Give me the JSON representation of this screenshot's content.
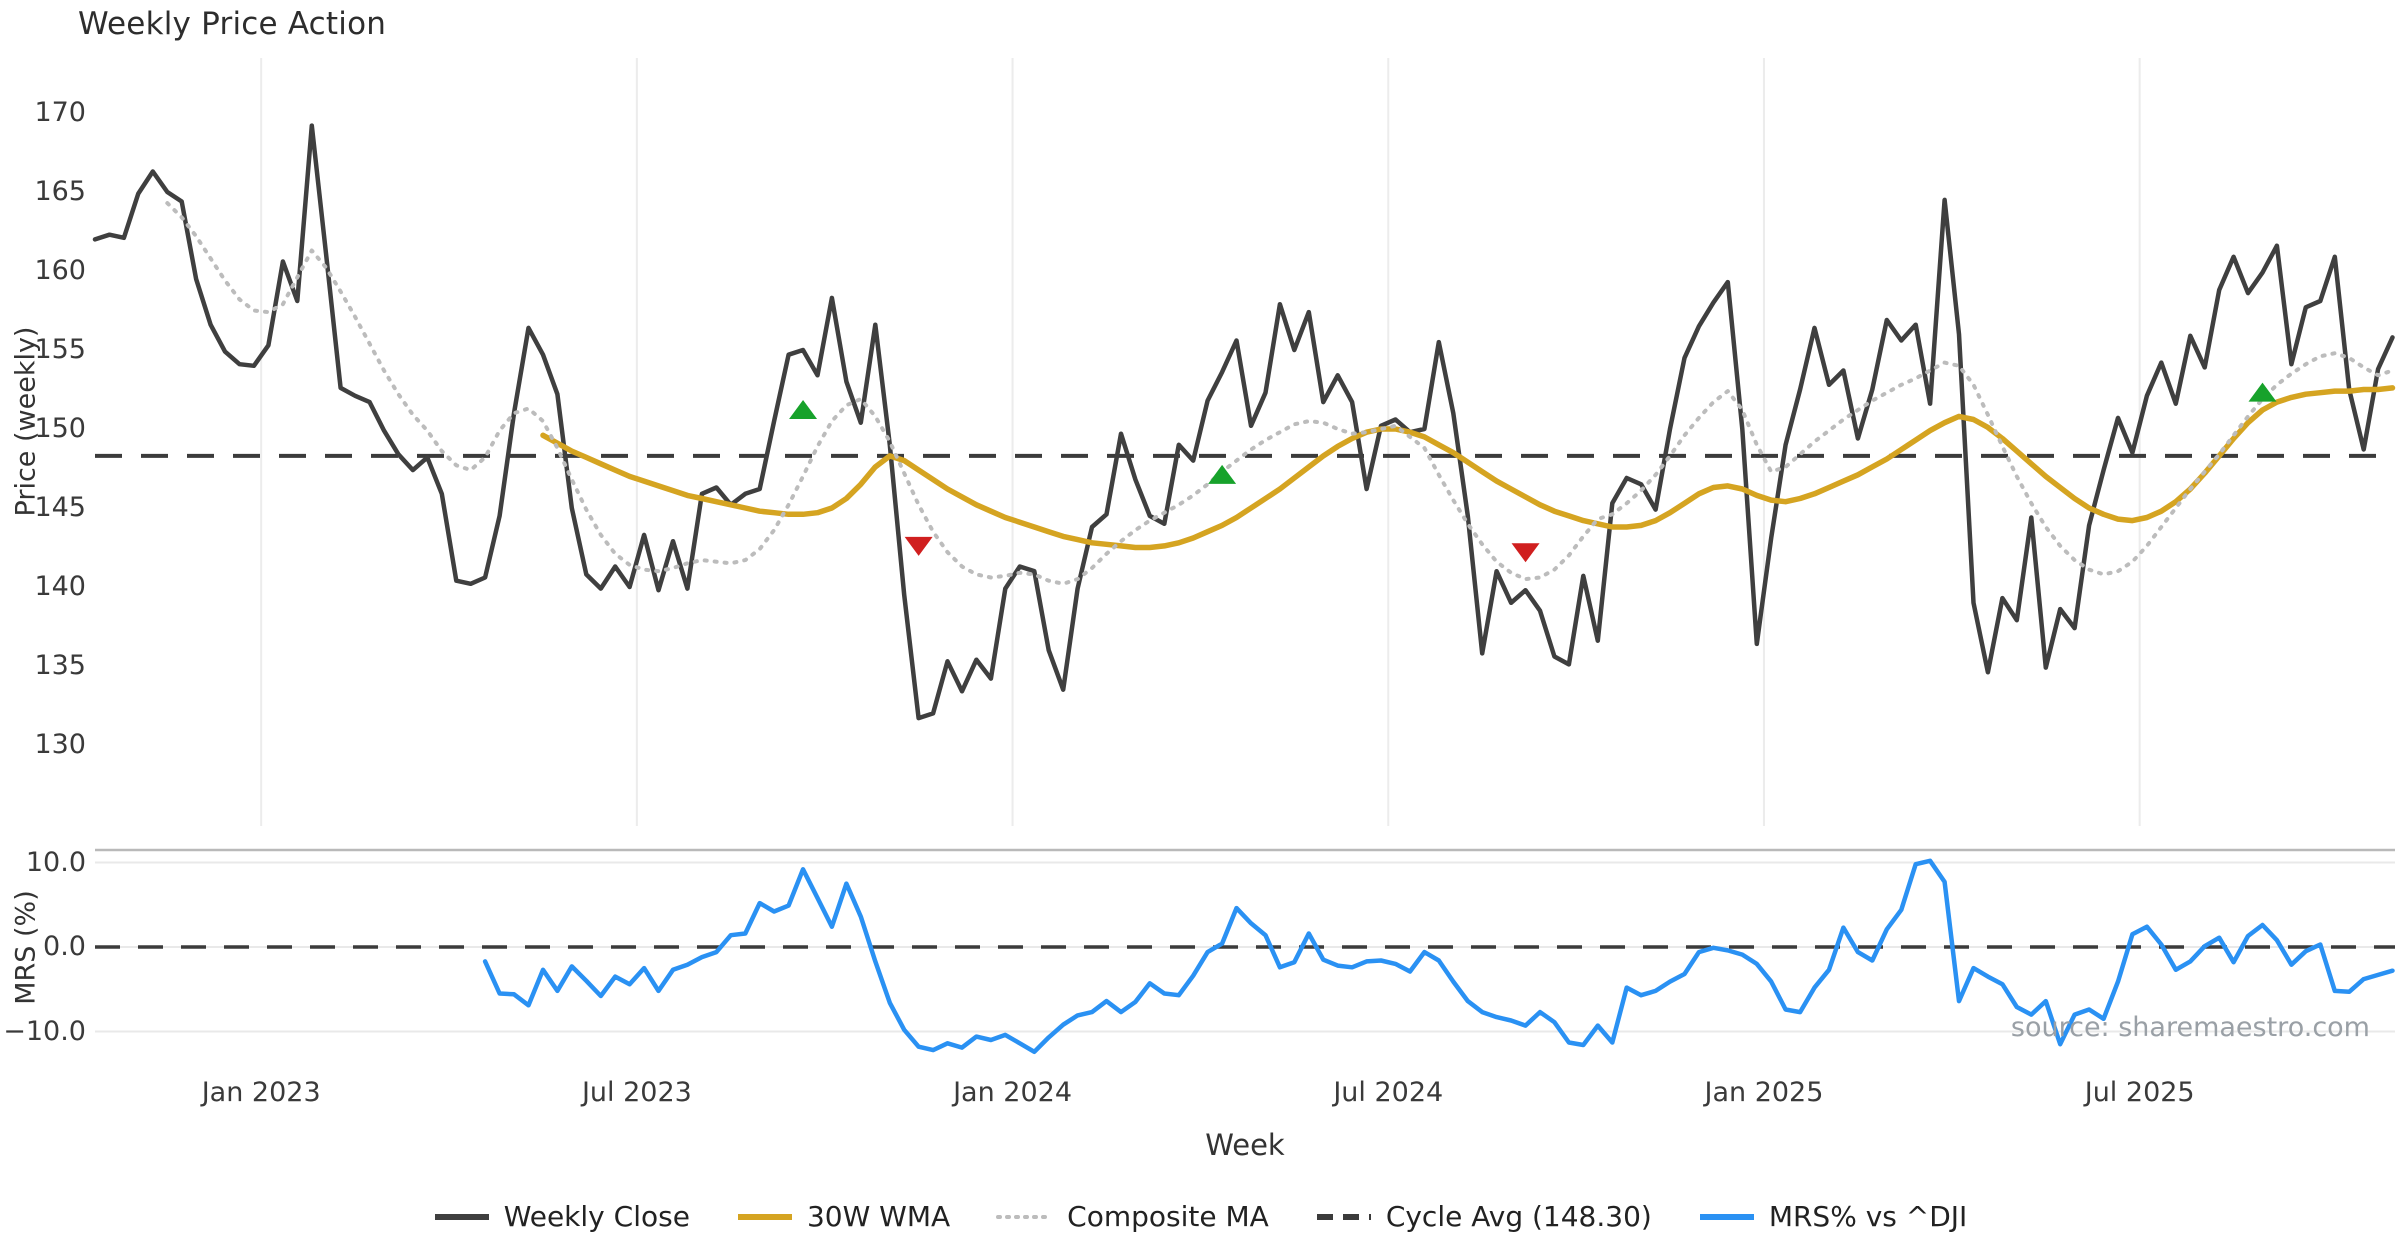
{
  "title": "Weekly Price Action",
  "axes": {
    "price": {
      "label": "Price (weekly)",
      "ticks": [
        170,
        165,
        160,
        155,
        150,
        145,
        140,
        135,
        130
      ]
    },
    "mrs": {
      "label": "MRS (%)",
      "ticks": [
        {
          "value": 10,
          "label": "10.0"
        },
        {
          "value": 0,
          "label": "0.0"
        },
        {
          "value": -10,
          "label": "−10.0"
        }
      ]
    },
    "x": {
      "label": "Week",
      "ticks": [
        {
          "week": 11.5,
          "label": "Jan 2023"
        },
        {
          "week": 37.5,
          "label": "Jul 2023"
        },
        {
          "week": 63.5,
          "label": "Jan 2024"
        },
        {
          "week": 89.5,
          "label": "Jul 2024"
        },
        {
          "week": 115.5,
          "label": "Jan 2025"
        },
        {
          "week": 141.5,
          "label": "Jul 2025"
        }
      ]
    }
  },
  "source_note": "source: sharemaestro.com",
  "legend": [
    {
      "label": "Weekly Close",
      "style": "solid",
      "color": "#3f3f3f"
    },
    {
      "label": "30W WMA",
      "style": "solid",
      "color": "#d5a421"
    },
    {
      "label": "Composite MA",
      "style": "dotted",
      "color": "#bcbcbc"
    },
    {
      "label": "Cycle Avg (148.30)",
      "style": "dashed",
      "color": "#3b3b3b"
    },
    {
      "label": "MRS% vs ^DJI",
      "style": "solid",
      "color": "#2a91f3"
    }
  ],
  "chart_data": {
    "type": "line",
    "x_unit": "week_index",
    "x_range_weeks": [
      0,
      159
    ],
    "panels": {
      "price": {
        "ylim": [
          130,
          170
        ],
        "grid": "vertical-only"
      },
      "mrs": {
        "ylim": [
          -13,
          11.5
        ],
        "grid": "horizontal",
        "zero_line": 0
      }
    },
    "cycle_avg": 148.3,
    "series": [
      {
        "name": "Weekly Close",
        "panel": "price",
        "color": "#3f3f3f",
        "width": 4.5,
        "style": "solid",
        "start_week": 0,
        "values": [
          162.0,
          162.3,
          162.1,
          164.9,
          166.3,
          165.0,
          164.4,
          159.5,
          156.6,
          154.9,
          154.1,
          154.0,
          155.3,
          160.6,
          158.1,
          169.2,
          161.0,
          152.6,
          152.1,
          151.7,
          149.9,
          148.4,
          147.4,
          148.2,
          145.9,
          140.4,
          140.2,
          140.6,
          144.5,
          151.0,
          156.4,
          154.7,
          152.2,
          145.0,
          140.8,
          139.9,
          141.3,
          140.0,
          143.3,
          139.8,
          142.9,
          139.9,
          145.9,
          146.3,
          145.2,
          145.9,
          146.2,
          150.5,
          154.7,
          155.0,
          153.4,
          158.3,
          153.0,
          150.4,
          156.6,
          149.0,
          139.5,
          131.7,
          132.0,
          135.3,
          133.4,
          135.4,
          134.2,
          139.9,
          141.3,
          141.0,
          136.0,
          133.5,
          139.9,
          143.8,
          144.6,
          149.7,
          146.8,
          144.5,
          144.0,
          149.0,
          148.0,
          151.8,
          153.6,
          155.6,
          150.2,
          152.3,
          157.9,
          155.0,
          157.4,
          151.7,
          153.4,
          151.7,
          146.2,
          150.2,
          150.6,
          149.8,
          150.0,
          155.5,
          151.0,
          144.5,
          135.8,
          141.0,
          139.0,
          139.8,
          138.5,
          135.6,
          135.1,
          140.7,
          136.6,
          145.3,
          146.9,
          146.5,
          144.9,
          150.0,
          154.5,
          156.5,
          158.0,
          159.3,
          150.0,
          136.4,
          143.1,
          149.0,
          152.5,
          156.4,
          152.8,
          153.7,
          149.4,
          152.5,
          156.9,
          155.6,
          156.6,
          151.6,
          164.5,
          156.0,
          139.0,
          134.6,
          139.3,
          137.9,
          144.4,
          134.9,
          138.6,
          137.4,
          143.9,
          147.4,
          150.7,
          148.5,
          152.1,
          154.2,
          151.6,
          155.9,
          153.9,
          158.8,
          160.9,
          158.6,
          159.9,
          161.6,
          154.1,
          157.7,
          158.1,
          160.9,
          152.5,
          148.7,
          153.8,
          155.8
        ]
      },
      {
        "name": "30W WMA",
        "panel": "price",
        "color": "#d5a421",
        "width": 5.5,
        "style": "solid",
        "start_week": 31,
        "values": [
          149.6,
          149.1,
          148.6,
          148.2,
          147.8,
          147.4,
          147.0,
          146.7,
          146.4,
          146.1,
          145.8,
          145.6,
          145.4,
          145.2,
          145.0,
          144.8,
          144.7,
          144.6,
          144.6,
          144.7,
          145.0,
          145.6,
          146.5,
          147.6,
          148.3,
          148.0,
          147.4,
          146.8,
          146.2,
          145.7,
          145.2,
          144.8,
          144.4,
          144.1,
          143.8,
          143.5,
          143.2,
          143.0,
          142.8,
          142.7,
          142.6,
          142.5,
          142.5,
          142.6,
          142.8,
          143.1,
          143.5,
          143.9,
          144.4,
          145.0,
          145.6,
          146.2,
          146.9,
          147.6,
          148.3,
          148.9,
          149.4,
          149.8,
          150.0,
          150.0,
          149.8,
          149.5,
          149.0,
          148.5,
          147.9,
          147.3,
          146.7,
          146.2,
          145.7,
          145.2,
          144.8,
          144.5,
          144.2,
          144.0,
          143.8,
          143.8,
          143.9,
          144.2,
          144.7,
          145.3,
          145.9,
          146.3,
          146.4,
          146.2,
          145.8,
          145.5,
          145.4,
          145.6,
          145.9,
          146.3,
          146.7,
          147.1,
          147.6,
          148.1,
          148.7,
          149.3,
          149.9,
          150.4,
          150.8,
          150.6,
          150.1,
          149.4,
          148.6,
          147.8,
          147.0,
          146.3,
          145.6,
          145.0,
          144.6,
          144.3,
          144.2,
          144.4,
          144.8,
          145.4,
          146.2,
          147.2,
          148.3,
          149.4,
          150.4,
          151.2,
          151.7,
          152.0,
          152.2,
          152.3,
          152.4,
          152.4,
          152.5,
          152.5,
          152.6
        ]
      },
      {
        "name": "Composite MA",
        "panel": "price",
        "color": "#bcbcbc",
        "width": 4,
        "style": "dotted",
        "start_week": 5,
        "values": [
          164.3,
          163.4,
          162.2,
          160.8,
          159.4,
          158.2,
          157.5,
          157.4,
          157.9,
          159.6,
          161.3,
          160.2,
          158.7,
          157.1,
          155.4,
          153.7,
          152.2,
          150.9,
          149.9,
          148.6,
          147.7,
          147.4,
          148.2,
          149.9,
          151.0,
          151.3,
          150.5,
          148.8,
          146.8,
          144.9,
          143.3,
          142.1,
          141.4,
          141.1,
          141.0,
          141.2,
          141.5,
          141.7,
          141.6,
          141.5,
          141.7,
          142.4,
          143.6,
          145.2,
          147.0,
          148.9,
          150.5,
          151.5,
          151.9,
          150.8,
          149.2,
          147.2,
          145.2,
          143.5,
          142.2,
          141.3,
          140.8,
          140.6,
          140.7,
          140.9,
          140.8,
          140.4,
          140.2,
          140.5,
          141.2,
          142.1,
          142.9,
          143.6,
          144.2,
          144.7,
          145.2,
          145.8,
          146.5,
          147.3,
          148.0,
          148.7,
          149.3,
          149.8,
          150.3,
          150.5,
          150.4,
          150.0,
          149.7,
          149.8,
          150.0,
          150.2,
          149.5,
          148.8,
          147.1,
          145.5,
          144.0,
          142.7,
          141.6,
          140.9,
          140.5,
          140.6,
          141.1,
          142.0,
          143.2,
          144.3,
          144.6,
          145.3,
          146.1,
          147.1,
          148.3,
          149.6,
          150.7,
          151.7,
          152.4,
          151.2,
          149.0,
          147.3,
          147.6,
          148.4,
          149.2,
          149.9,
          150.6,
          151.2,
          151.8,
          152.3,
          152.8,
          153.2,
          153.7,
          154.2,
          154.0,
          152.8,
          150.9,
          148.9,
          147.0,
          145.3,
          143.8,
          142.6,
          141.7,
          141.1,
          140.8,
          141.0,
          141.6,
          142.6,
          143.8,
          145.0,
          146.2,
          147.3,
          148.4,
          149.6,
          150.8,
          151.9,
          152.8,
          153.5,
          154.1,
          154.6,
          154.8,
          154.5,
          153.9,
          153.4,
          153.7
        ]
      },
      {
        "name": "MRS% vs ^DJI",
        "panel": "mrs",
        "color": "#2a91f3",
        "width": 4.5,
        "style": "solid",
        "start_week": 27,
        "values": [
          -1.7,
          -5.5,
          -5.6,
          -6.9,
          -2.7,
          -5.2,
          -2.3,
          -4.0,
          -5.8,
          -3.5,
          -4.4,
          -2.5,
          -5.2,
          -2.7,
          -2.1,
          -1.2,
          -0.6,
          1.4,
          1.6,
          5.2,
          4.2,
          4.9,
          9.2,
          5.8,
          2.4,
          7.5,
          3.6,
          -1.7,
          -6.6,
          -9.8,
          -11.8,
          -12.2,
          -11.4,
          -11.9,
          -10.6,
          -11.0,
          -10.4,
          -11.4,
          -12.4,
          -10.7,
          -9.2,
          -8.1,
          -7.7,
          -6.4,
          -7.7,
          -6.5,
          -4.3,
          -5.5,
          -5.7,
          -3.4,
          -0.6,
          0.4,
          4.6,
          2.8,
          1.4,
          -2.4,
          -1.8,
          1.6,
          -1.5,
          -2.2,
          -2.4,
          -1.7,
          -1.6,
          -2.0,
          -2.9,
          -0.6,
          -1.6,
          -4.1,
          -6.4,
          -7.7,
          -8.3,
          -8.7,
          -9.3,
          -7.7,
          -8.9,
          -11.3,
          -11.6,
          -9.3,
          -11.3,
          -4.8,
          -5.7,
          -5.2,
          -4.1,
          -3.2,
          -0.6,
          -0.1,
          -0.4,
          -0.9,
          -2.0,
          -4.1,
          -7.4,
          -7.7,
          -4.8,
          -2.7,
          2.3,
          -0.6,
          -1.6,
          2.1,
          4.4,
          9.8,
          10.2,
          7.7,
          -6.4,
          -2.5,
          -3.5,
          -4.4,
          -7.1,
          -8.0,
          -6.4,
          -11.5,
          -8.0,
          -7.4,
          -8.5,
          -4.1,
          1.5,
          2.4,
          0.3,
          -2.7,
          -1.7,
          0.1,
          1.1,
          -1.8,
          1.3,
          2.6,
          0.8,
          -2.1,
          -0.5,
          0.3,
          -5.2,
          -5.3,
          -3.8,
          -3.3,
          -2.8
        ]
      }
    ],
    "markers": {
      "buy_up_green": [
        {
          "week": 49,
          "price": 151.2
        },
        {
          "week": 78,
          "price": 147.1
        },
        {
          "week": 150,
          "price": 152.3
        }
      ],
      "sell_down_red": [
        {
          "week": 57,
          "price": 142.6
        },
        {
          "week": 99,
          "price": 142.2
        }
      ]
    },
    "marker_colors": {
      "up": "#17a22b",
      "down": "#d01f1f"
    },
    "grid_color": "#ececec",
    "panel_spine_color": "#b9b9b9"
  }
}
